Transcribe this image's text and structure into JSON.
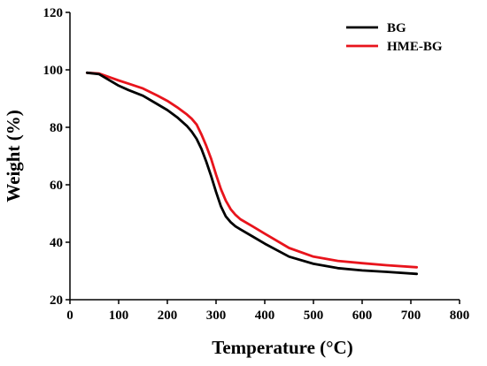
{
  "chart_data": {
    "type": "line",
    "xlabel": "Temperature (°C)",
    "ylabel": "Weight (%)",
    "xlim": [
      0,
      800
    ],
    "ylim": [
      20,
      120
    ],
    "xticks": [
      0,
      100,
      200,
      300,
      400,
      500,
      600,
      700,
      800
    ],
    "yticks": [
      20,
      40,
      60,
      80,
      100,
      120
    ],
    "grid": false,
    "legend_position": "top-right",
    "series": [
      {
        "name": "BG",
        "color": "#000000",
        "x": [
          35,
          60,
          80,
          100,
          120,
          150,
          180,
          200,
          220,
          240,
          250,
          260,
          270,
          280,
          290,
          300,
          310,
          320,
          330,
          340,
          350,
          375,
          400,
          450,
          500,
          550,
          600,
          650,
          712
        ],
        "y": [
          99,
          98.5,
          96.5,
          94.5,
          93,
          91,
          88,
          86,
          83.5,
          80.5,
          78.5,
          76,
          72.5,
          68,
          63,
          57.5,
          52.5,
          49,
          47,
          45.5,
          44.5,
          42,
          39.5,
          35,
          32.5,
          31,
          30.2,
          29.7,
          29
        ]
      },
      {
        "name": "HME-BG",
        "color": "#e8141c",
        "x": [
          35,
          60,
          80,
          100,
          120,
          150,
          180,
          200,
          220,
          240,
          250,
          260,
          270,
          280,
          290,
          300,
          310,
          320,
          330,
          340,
          350,
          375,
          400,
          450,
          500,
          550,
          600,
          650,
          712
        ],
        "y": [
          99,
          98.7,
          97.5,
          96.3,
          95.2,
          93.5,
          91,
          89.2,
          87,
          84.5,
          83,
          81,
          77.5,
          73.5,
          69,
          63.5,
          58.5,
          54.5,
          51.5,
          49.5,
          48,
          45.5,
          43,
          38,
          35,
          33.5,
          32.7,
          32,
          31.3
        ]
      }
    ]
  }
}
